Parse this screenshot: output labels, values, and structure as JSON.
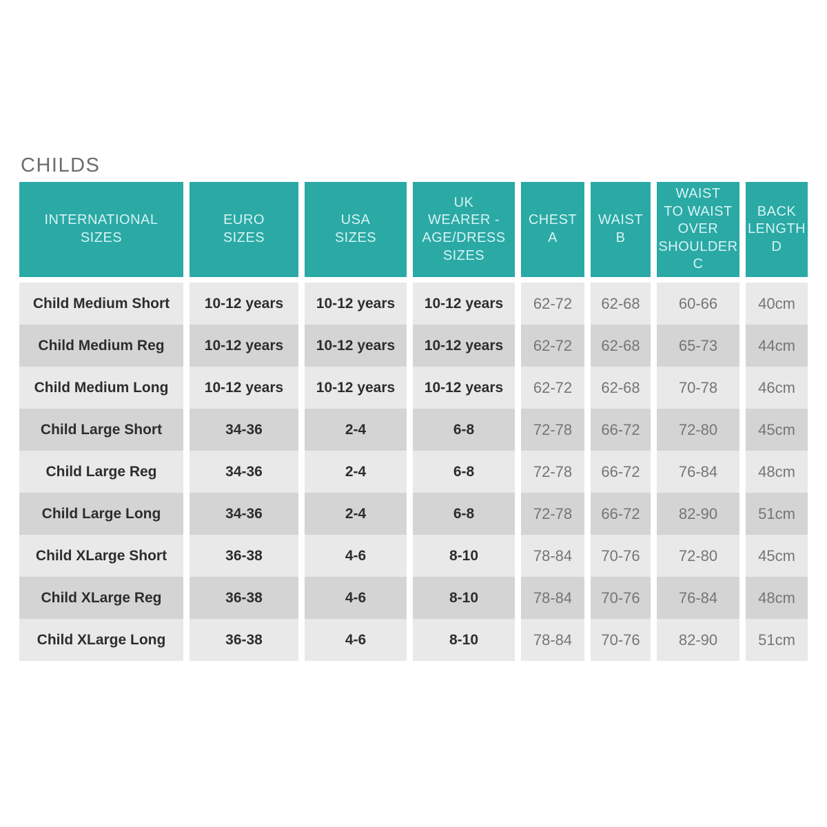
{
  "title": "CHILDS",
  "colors": {
    "header_bg": "#2aa9a5",
    "header_text": "#d7f4f2",
    "row_light": "#e9e9e9",
    "row_dark": "#d4d4d4",
    "label_text": "#2d2d2d",
    "measure_text": "#757575",
    "title_text": "#6b6b6b"
  },
  "table": {
    "columns": [
      {
        "id": "international-sizes",
        "label": "INTERNATIONAL SIZES",
        "lines": [
          "INTERNATIONAL",
          "SIZES"
        ]
      },
      {
        "id": "euro-sizes",
        "label": "EURO SIZES",
        "lines": [
          "EURO",
          "SIZES"
        ]
      },
      {
        "id": "usa-sizes",
        "label": "USA SIZES",
        "lines": [
          "USA",
          "SIZES"
        ]
      },
      {
        "id": "uk-wearer-age-dress-sizes",
        "label": "UK WEARER - AGE/DRESS SIZES",
        "lines": [
          "UK",
          "WEARER -",
          "AGE/DRESS",
          "SIZES"
        ]
      },
      {
        "id": "chest-a",
        "label": "CHEST A",
        "lines": [
          "CHEST",
          "A"
        ]
      },
      {
        "id": "waist-b",
        "label": "WAIST B",
        "lines": [
          "WAIST",
          "B"
        ]
      },
      {
        "id": "waist-to-waist-over-shoulder-c",
        "label": "WAIST TO WAIST OVER SHOULDER C",
        "lines": [
          "WAIST",
          "TO WAIST",
          "OVER",
          "SHOULDER",
          "C"
        ]
      },
      {
        "id": "back-length-d",
        "label": "BACK LENGTH D",
        "lines": [
          "BACK",
          "LENGTH",
          "D"
        ]
      }
    ],
    "rows": [
      [
        "Child Medium Short",
        "10-12 years",
        "10-12 years",
        "10-12 years",
        "62-72",
        "62-68",
        "60-66",
        "40cm"
      ],
      [
        "Child Medium Reg",
        "10-12 years",
        "10-12 years",
        "10-12 years",
        "62-72",
        "62-68",
        "65-73",
        "44cm"
      ],
      [
        "Child Medium Long",
        "10-12 years",
        "10-12 years",
        "10-12 years",
        "62-72",
        "62-68",
        "70-78",
        "46cm"
      ],
      [
        "Child Large Short",
        "34-36",
        "2-4",
        "6-8",
        "72-78",
        "66-72",
        "72-80",
        "45cm"
      ],
      [
        "Child Large Reg",
        "34-36",
        "2-4",
        "6-8",
        "72-78",
        "66-72",
        "76-84",
        "48cm"
      ],
      [
        "Child Large Long",
        "34-36",
        "2-4",
        "6-8",
        "72-78",
        "66-72",
        "82-90",
        "51cm"
      ],
      [
        "Child XLarge Short",
        "36-38",
        "4-6",
        "8-10",
        "78-84",
        "70-76",
        "72-80",
        "45cm"
      ],
      [
        "Child XLarge Reg",
        "36-38",
        "4-6",
        "8-10",
        "78-84",
        "70-76",
        "76-84",
        "48cm"
      ],
      [
        "Child XLarge Long",
        "36-38",
        "4-6",
        "8-10",
        "78-84",
        "70-76",
        "82-90",
        "51cm"
      ]
    ]
  }
}
